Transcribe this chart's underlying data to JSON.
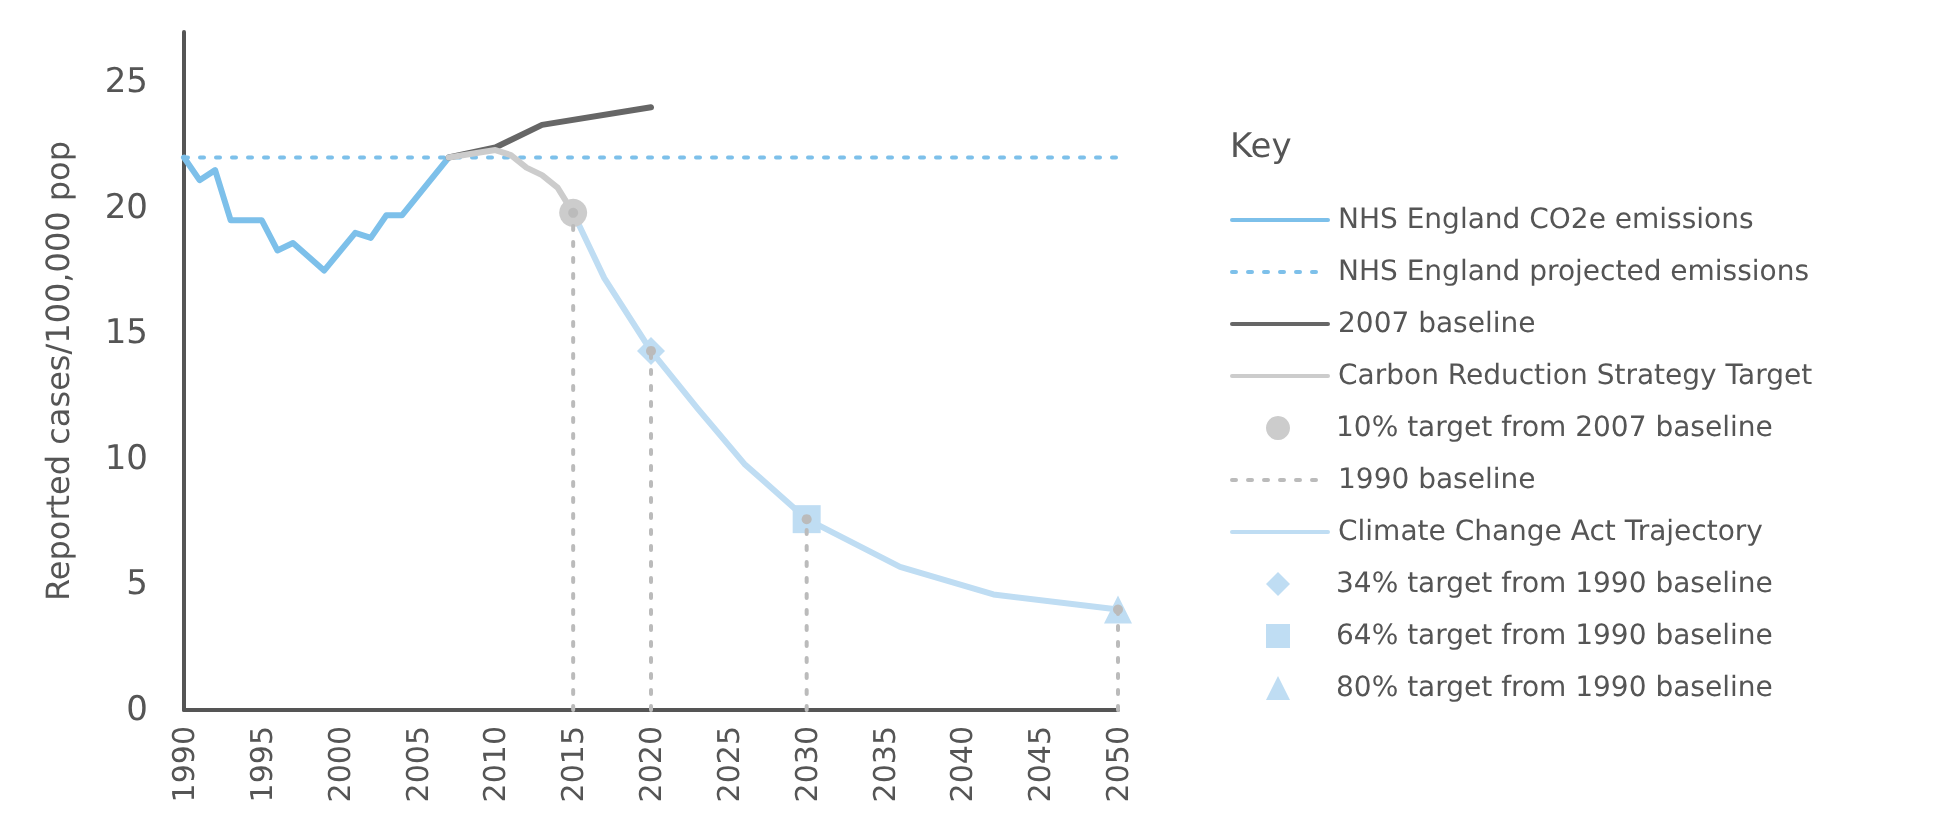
{
  "chart_data": {
    "type": "line",
    "ylabel": "Reported cases/100,000 pop",
    "legend_title": "Key",
    "legend": "right",
    "xlim": [
      1990,
      2050
    ],
    "xticks": [
      1990,
      1995,
      2000,
      2005,
      2010,
      2015,
      2020,
      2025,
      2030,
      2035,
      2040,
      2045,
      2050
    ],
    "ylim": [
      0,
      27
    ],
    "yticks": [
      0,
      5,
      10,
      15,
      20,
      25
    ],
    "grid": false,
    "series": [
      {
        "name": "NHS England CO2e emissions",
        "color": "#7dc0ea",
        "marker": "none",
        "line_style": "solid",
        "x": [
          1990,
          1991,
          1992,
          1993,
          1995,
          1996,
          1997,
          1999,
          2001,
          2002,
          2003,
          2004,
          2007
        ],
        "values": [
          22.0,
          21.1,
          21.5,
          19.5,
          19.5,
          18.3,
          18.6,
          17.5,
          19.0,
          18.8,
          19.7,
          19.7,
          22.0
        ]
      },
      {
        "name": "NHS England projected emissions",
        "color": "#7dc0ea",
        "marker": "none",
        "line_style": "dotted",
        "x": [
          1990,
          2050
        ],
        "values": [
          22.0,
          22.0
        ]
      },
      {
        "name": "2007 baseline",
        "color": "#666666",
        "marker": "none",
        "line_style": "solid",
        "x": [
          2007,
          2010,
          2013,
          2020
        ],
        "values": [
          22.0,
          22.4,
          23.3,
          24.0
        ]
      },
      {
        "name": "Carbon Reduction Strategy Target",
        "color": "#cccccc",
        "marker": "none",
        "line_style": "solid",
        "x": [
          2007,
          2010,
          2011,
          2012,
          2013,
          2014,
          2015
        ],
        "values": [
          22.0,
          22.3,
          22.1,
          21.6,
          21.3,
          20.8,
          19.8
        ]
      },
      {
        "name": "10% target from 2007 baseline",
        "type": "scatter",
        "color": "#cccccc",
        "marker": "circle",
        "x": [
          2015
        ],
        "values": [
          19.8
        ]
      },
      {
        "name": "1990 baseline",
        "type": "lollipop",
        "color": "#bbbbbb",
        "marker": "circle",
        "line_style": "dotted",
        "x": [
          2015,
          2020,
          2030,
          2050
        ],
        "values": [
          19.8,
          14.3,
          7.6,
          4.0
        ]
      },
      {
        "name": "Climate Change Act Trajectory",
        "color": "#bfddf3",
        "marker": "none",
        "line_style": "solid",
        "x": [
          2015,
          2017,
          2020,
          2023,
          2026,
          2030,
          2036,
          2042,
          2050
        ],
        "values": [
          19.8,
          17.2,
          14.3,
          12.0,
          9.8,
          7.6,
          5.7,
          4.6,
          4.0
        ]
      },
      {
        "name": "34% target from 1990 baseline",
        "type": "scatter",
        "color": "#bfddf3",
        "marker": "diamond",
        "x": [
          2020
        ],
        "values": [
          14.3
        ]
      },
      {
        "name": "64% target from 1990 baseline",
        "type": "scatter",
        "color": "#bfddf3",
        "marker": "square",
        "x": [
          2030
        ],
        "values": [
          7.6
        ]
      },
      {
        "name": "80% target from 1990 baseline",
        "type": "scatter",
        "color": "#bfddf3",
        "marker": "triangle",
        "x": [
          2050
        ],
        "values": [
          4.0
        ]
      }
    ]
  }
}
